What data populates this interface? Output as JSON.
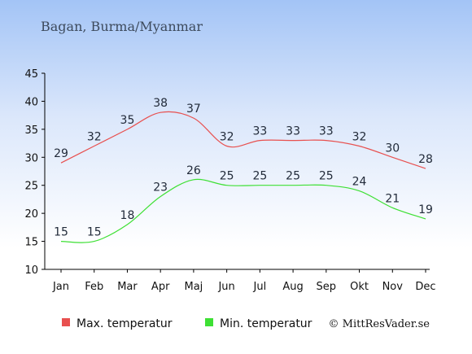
{
  "header": {
    "place": "Bagan, Burma/Myanmar"
  },
  "legend": {
    "max_label": "Max. temperatur",
    "min_label": "Min. temperatur"
  },
  "footer": {
    "copyright": "© MittResVader.se"
  },
  "colors": {
    "max": "#e8504f",
    "min": "#3ee034",
    "axis": "#000000"
  },
  "chart_data": {
    "type": "line",
    "categories": [
      "Jan",
      "Feb",
      "Mar",
      "Apr",
      "Maj",
      "Jun",
      "Jul",
      "Aug",
      "Sep",
      "Okt",
      "Nov",
      "Dec"
    ],
    "series": [
      {
        "name": "Max. temperatur",
        "values": [
          29,
          32,
          35,
          38,
          37,
          32,
          33,
          33,
          33,
          32,
          30,
          28
        ]
      },
      {
        "name": "Min. temperatur",
        "values": [
          15,
          15,
          18,
          23,
          26,
          25,
          25,
          25,
          25,
          24,
          21,
          19
        ]
      }
    ],
    "yticks": [
      10,
      15,
      20,
      25,
      30,
      35,
      40,
      45
    ],
    "ylim": [
      10,
      45
    ],
    "title": "Bagan, Burma/Myanmar",
    "xlabel": "",
    "ylabel": "",
    "grid": false,
    "legend_position": "bottom"
  }
}
